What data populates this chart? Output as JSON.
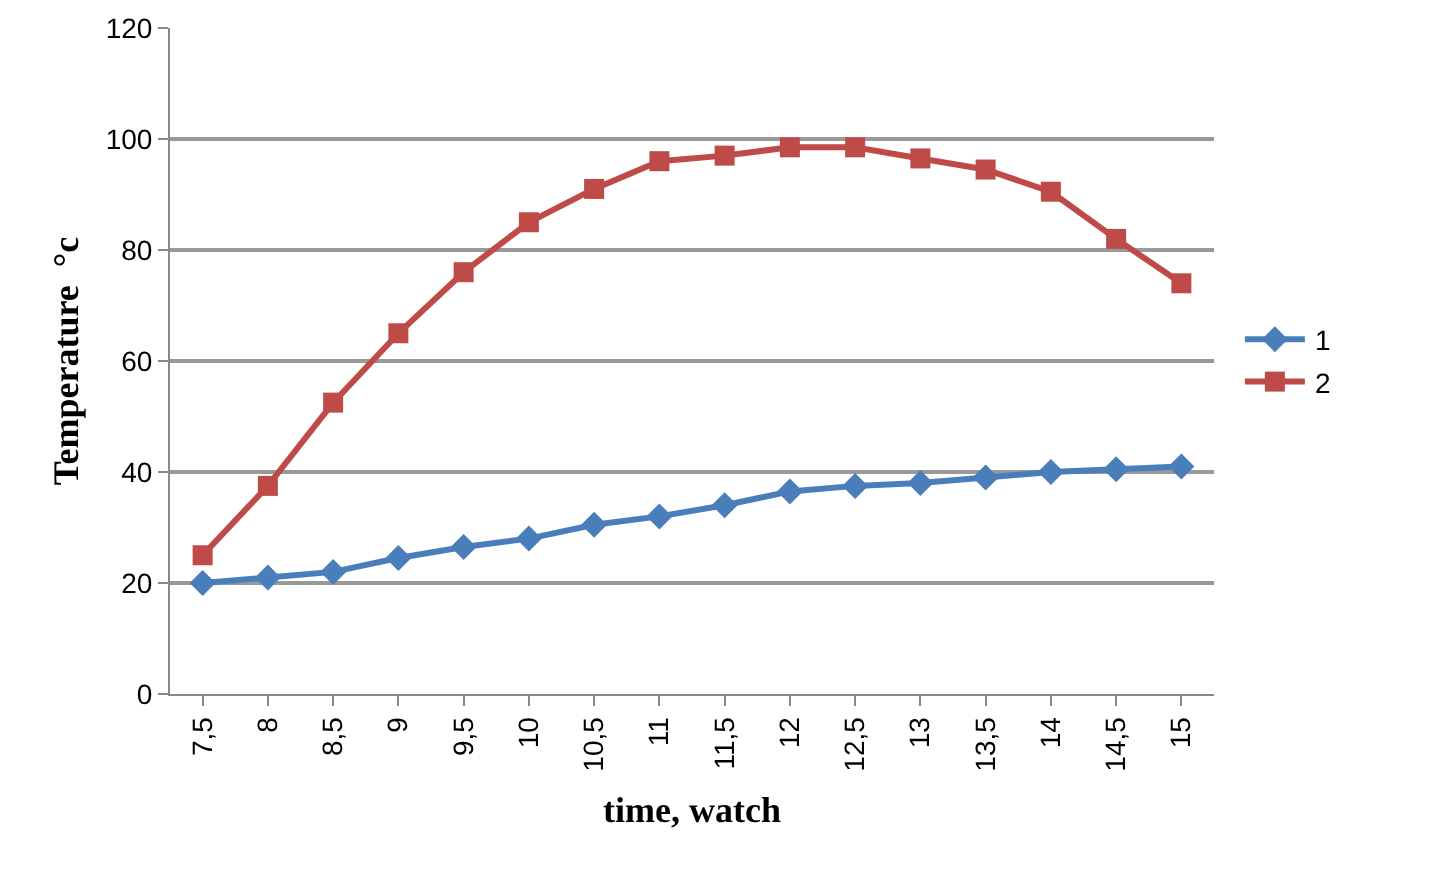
{
  "chart_data": {
    "type": "line",
    "xlabel": "time, watch",
    "ylabel": "Temperature  °c",
    "categories": [
      "7,5",
      "8",
      "8,5",
      "9",
      "9,5",
      "10",
      "10,5",
      "11",
      "11,5",
      "12",
      "12,5",
      "13",
      "13,5",
      "14",
      "14,5",
      "15"
    ],
    "series": [
      {
        "name": "1",
        "color": "#4a7ebb",
        "marker": "diamond",
        "values": [
          20,
          21,
          22,
          24.5,
          26.5,
          28,
          30.5,
          32,
          34,
          36.5,
          37.5,
          38,
          39,
          40,
          40.5,
          41
        ]
      },
      {
        "name": "2",
        "color": "#be4b48",
        "marker": "square",
        "values": [
          25,
          37.5,
          52.5,
          65,
          76,
          85,
          91,
          96,
          97,
          98.5,
          98.5,
          96.5,
          94.5,
          90.5,
          82,
          74
        ]
      }
    ],
    "ylim": [
      0,
      120
    ],
    "yticks": [
      0,
      20,
      40,
      60,
      80,
      100,
      120
    ],
    "grid": "y",
    "legend": "right",
    "line_style": "solid"
  }
}
